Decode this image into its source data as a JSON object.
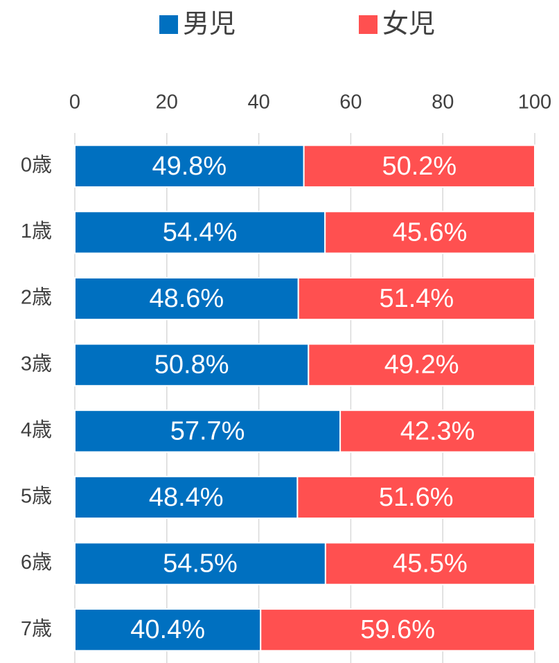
{
  "chart_data": {
    "type": "bar",
    "orientation": "horizontal",
    "stacked": true,
    "legend": "top",
    "categories": [
      "0歳",
      "1歳",
      "2歳",
      "3歳",
      "4歳",
      "5歳",
      "6歳",
      "7歳"
    ],
    "series": [
      {
        "name": "男児",
        "color": "#0070c0",
        "values": [
          49.8,
          54.4,
          48.6,
          50.8,
          57.7,
          48.4,
          54.5,
          40.4
        ],
        "value_labels": [
          "49.8%",
          "54.4%",
          "48.6%",
          "50.8%",
          "57.7%",
          "48.4%",
          "54.5%",
          "40.4%"
        ]
      },
      {
        "name": "女児",
        "color": "#ff5050",
        "values": [
          50.2,
          45.6,
          51.4,
          49.2,
          42.3,
          51.6,
          45.5,
          59.6
        ],
        "value_labels": [
          "50.2%",
          "45.6%",
          "51.4%",
          "49.2%",
          "42.3%",
          "51.6%",
          "45.5%",
          "59.6%"
        ]
      }
    ],
    "xlim": [
      0,
      100
    ],
    "xticks": [
      0,
      20,
      40,
      60,
      80,
      100
    ],
    "grid": true
  }
}
